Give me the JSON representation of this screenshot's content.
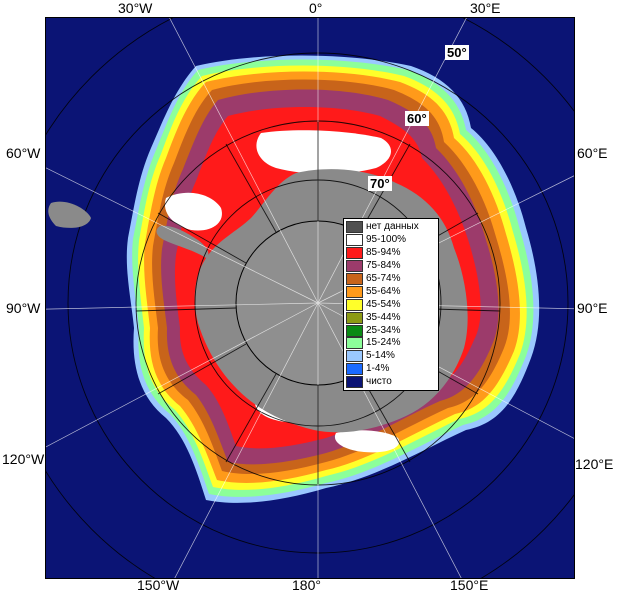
{
  "map": {
    "longitude_labels": {
      "top_30w": "30°W",
      "top_0": "0°",
      "top_30e": "30°E",
      "left_60w": "60°W",
      "right_60e": "60°E",
      "left_90w": "90°W",
      "right_90e": "90°E",
      "left_120w": "120°W",
      "right_120e": "120°E",
      "bottom_150w": "150°W",
      "bottom_180": "180°",
      "bottom_150e": "150°E"
    },
    "latitude_labels": {
      "lat_50": "50°",
      "lat_60": "60°",
      "lat_70": "70°"
    },
    "colors": {
      "open_water": "#0b1475",
      "land": "#8a8a8a",
      "pole_disk": "#8f8f8f"
    }
  },
  "legend": {
    "items": [
      {
        "label": "нет данных",
        "color": "#505050"
      },
      {
        "label": "95-100%",
        "color": "#ffffff"
      },
      {
        "label": "85-94%",
        "color": "#ff1a1a"
      },
      {
        "label": "75-84%",
        "color": "#9c3b6b"
      },
      {
        "label": "65-74%",
        "color": "#c8641a"
      },
      {
        "label": "55-64%",
        "color": "#ff9a1a"
      },
      {
        "label": "45-54%",
        "color": "#ffff2a"
      },
      {
        "label": "35-44%",
        "color": "#8c9a14"
      },
      {
        "label": "25-34%",
        "color": "#0a8a14"
      },
      {
        "label": "15-24%",
        "color": "#8cff9a"
      },
      {
        "label": "5-14%",
        "color": "#9ac8ff"
      },
      {
        "label": "1-4%",
        "color": "#1a6aff"
      },
      {
        "label": "чисто",
        "color": "#0b1475"
      }
    ]
  }
}
